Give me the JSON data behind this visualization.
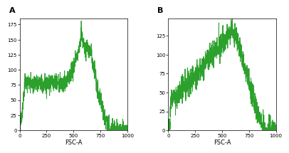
{
  "panel_A": {
    "label": "A",
    "xlabel": "FSC-A",
    "ylim": [
      0,
      185
    ],
    "xlim": [
      0,
      1000
    ],
    "yticks": [
      0,
      25,
      50,
      75,
      100,
      125,
      150,
      175
    ],
    "xticks": [
      0,
      250,
      500,
      750,
      1000
    ],
    "line_color": "#2ca02c",
    "seed": 7,
    "noise_level": 8
  },
  "panel_B": {
    "label": "B",
    "xlabel": "FSC-A",
    "ylim": [
      0,
      148
    ],
    "xlim": [
      0,
      1000
    ],
    "yticks": [
      0,
      25,
      50,
      75,
      100,
      125
    ],
    "xticks": [
      0,
      250,
      500,
      750,
      1000
    ],
    "line_color": "#2ca02c",
    "seed": 13,
    "noise_level": 8
  },
  "bg_color": "#ffffff",
  "line_width": 0.7
}
